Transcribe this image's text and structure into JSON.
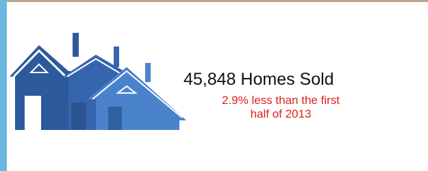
{
  "headline": "45,848 Homes Sold",
  "subtext": {
    "line1": "2.9% less than the first",
    "line2": "half of 2013"
  }
}
